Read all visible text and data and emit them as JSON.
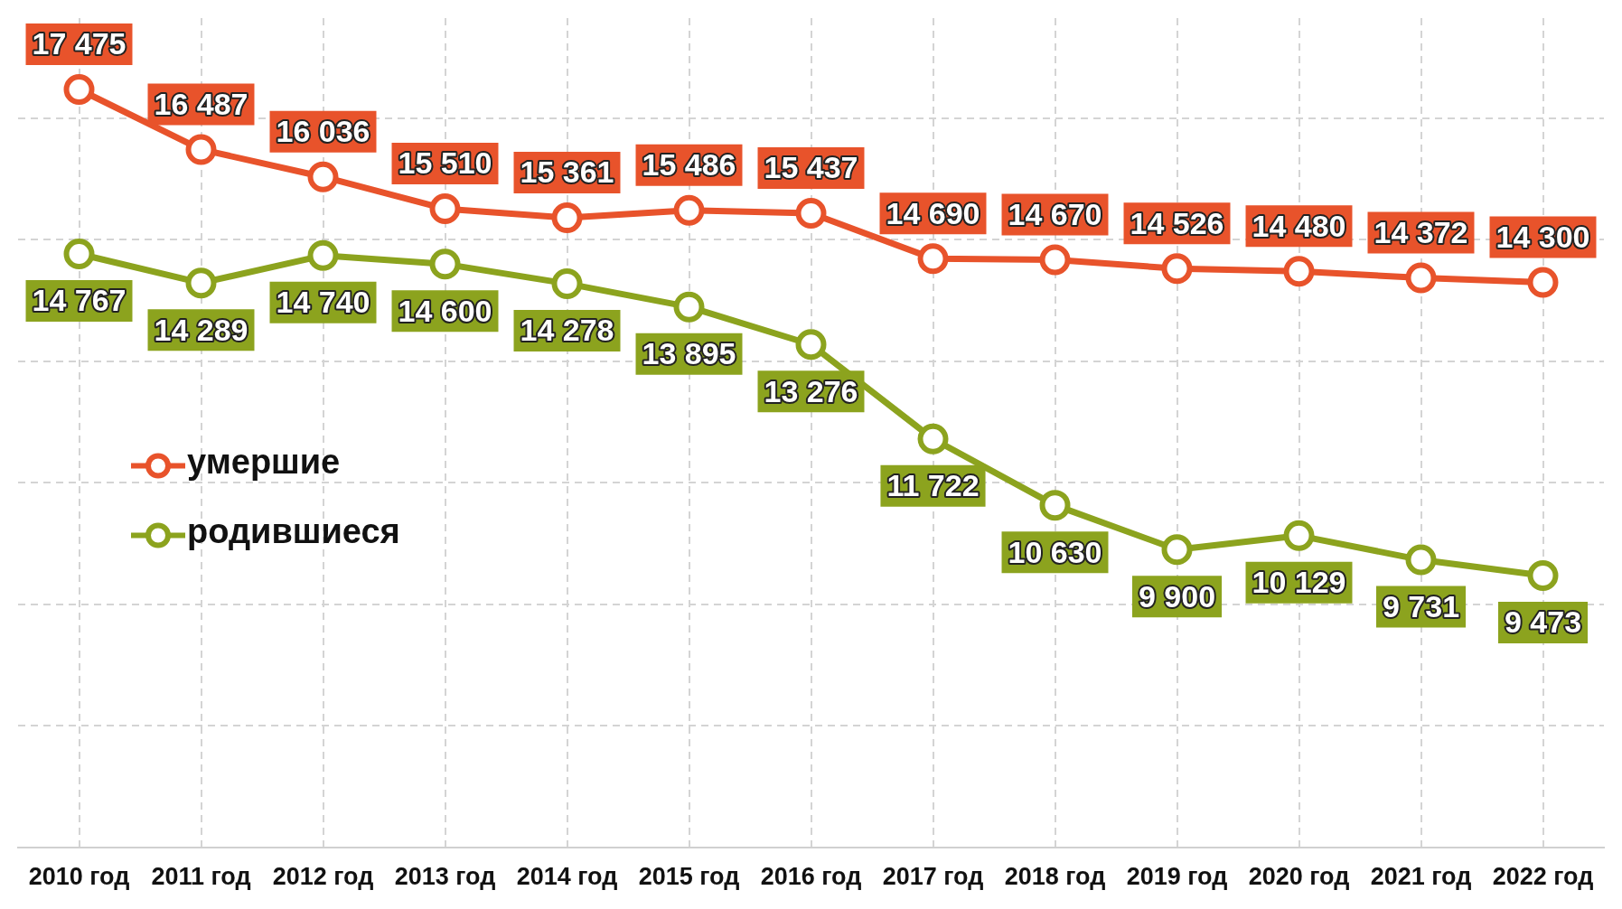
{
  "chart_data": {
    "type": "line",
    "categories": [
      "2010 год",
      "2011 год",
      "2012 год",
      "2013 год",
      "2014 год",
      "2015 год",
      "2016 год",
      "2017 год",
      "2018 год",
      "2019 год",
      "2020 год",
      "2021 год",
      "2022 год"
    ],
    "series": [
      {
        "name": "умершие",
        "color": "#e8532b",
        "values": [
          17475,
          16487,
          16036,
          15510,
          15361,
          15486,
          15437,
          14690,
          14670,
          14526,
          14480,
          14372,
          14300
        ],
        "value_labels": [
          "17 475",
          "16 487",
          "16 036",
          "15 510",
          "15 361",
          "15 486",
          "15 437",
          "14 690",
          "14 670",
          "14 526",
          "14 480",
          "14 372",
          "14 300"
        ]
      },
      {
        "name": "родившиеся",
        "color": "#8ca31e",
        "values": [
          14767,
          14289,
          14740,
          14600,
          14278,
          13895,
          13276,
          11722,
          10630,
          9900,
          10129,
          9731,
          9473
        ],
        "value_labels": [
          "14 767",
          "14 289",
          "14 740",
          "14 600",
          "14 278",
          "13 895",
          "13 276",
          "11 722",
          "10 630",
          "9 900",
          "10 129",
          "9 731",
          "9 473"
        ]
      }
    ],
    "ylim": [
      5000,
      18650
    ],
    "yticks": [
      {
        "value": 5000,
        "label": null
      },
      {
        "value": 7000,
        "label": null
      },
      {
        "value": 9000,
        "label": null
      },
      {
        "value": 11000,
        "label": null
      },
      {
        "value": 13000,
        "label": null
      },
      {
        "value": 15000,
        "label": null
      },
      {
        "value": 17000,
        "label": null
      }
    ],
    "tick_labels": "x",
    "grid": true,
    "legend": "left",
    "marker": "circle",
    "line_style": "solid"
  }
}
